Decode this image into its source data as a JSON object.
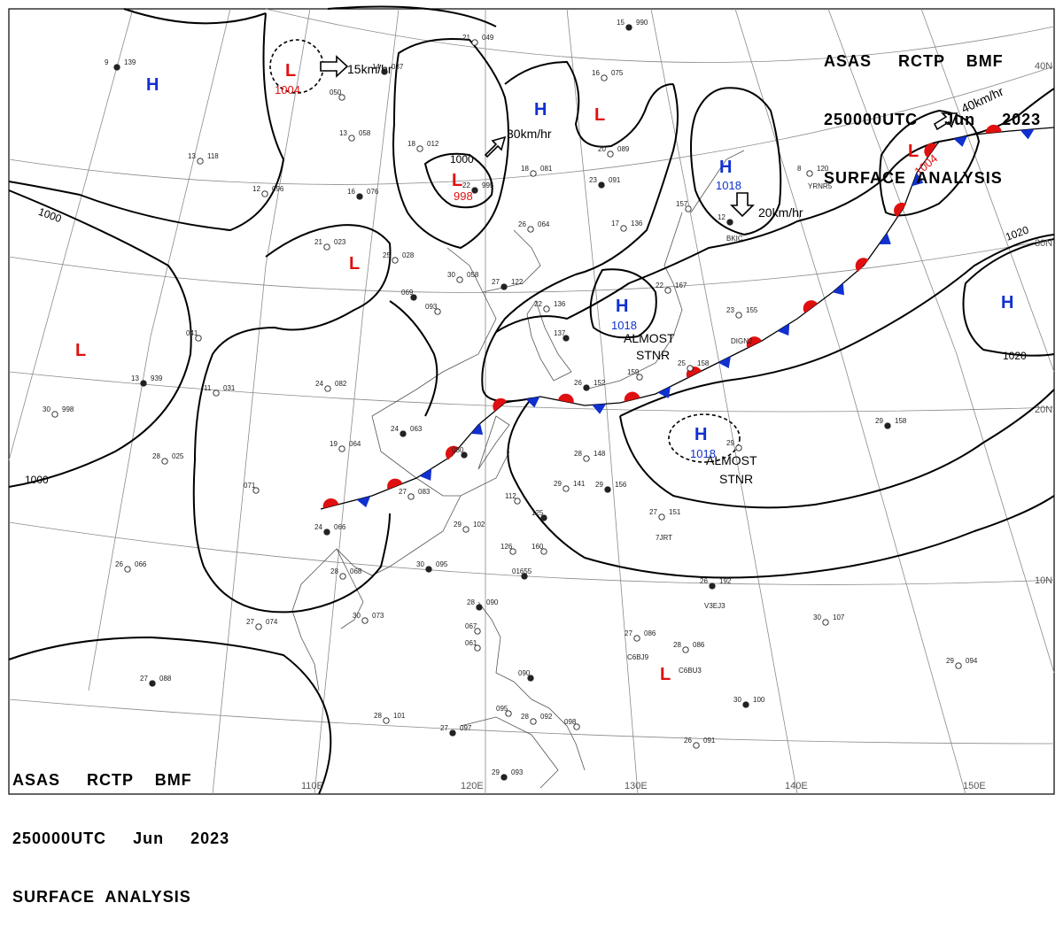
{
  "header_top": {
    "line1": "ASAS     RCTP    BMF",
    "line2": "250000UTC     Jun     2023",
    "line3": "SURFACE  ANALYSIS"
  },
  "header_bottom": {
    "line1": "ASAS     RCTP    BMF",
    "line2": "250000UTC     Jun     2023",
    "line3": "SURFACE  ANALYSIS"
  },
  "longitude_labels": [
    "110E",
    "120E",
    "130E",
    "140E",
    "150E"
  ],
  "latitude_labels": [
    "40N",
    "30N",
    "20N",
    "10N"
  ],
  "pressure_centers": [
    {
      "type": "H",
      "value": ""
    },
    {
      "type": "L",
      "value": "1004"
    },
    {
      "type": "L",
      "value": "998"
    },
    {
      "type": "H",
      "value": ""
    },
    {
      "type": "L",
      "value": ""
    },
    {
      "type": "H",
      "value": "1018"
    },
    {
      "type": "L",
      "value": "1004"
    },
    {
      "type": "L",
      "value": ""
    },
    {
      "type": "L",
      "value": ""
    },
    {
      "type": "H",
      "value": "1018"
    },
    {
      "type": "H",
      "value": "1018"
    },
    {
      "type": "H",
      "value": ""
    },
    {
      "type": "L",
      "value": ""
    }
  ],
  "isobar_labels": [
    "1000",
    "1000",
    "1000",
    "1020",
    "1020"
  ],
  "movement_labels": [
    "15km/hr",
    "30km/hr",
    "20km/hr",
    "40km/hr"
  ],
  "notes": [
    [
      "ALMOST",
      "STNR"
    ],
    [
      "ALMOST",
      "STNR"
    ]
  ],
  "station_plots": [
    {
      "t": "9",
      "p": "139"
    },
    {
      "t": "12",
      "p": "096"
    },
    {
      "t": "13",
      "p": "118"
    },
    {
      "t": "14",
      "p": "037"
    },
    {
      "t": "050",
      "p": ""
    },
    {
      "t": "13",
      "p": "058"
    },
    {
      "t": "16",
      "p": "076"
    },
    {
      "t": "18",
      "p": "012"
    },
    {
      "t": "21",
      "p": "049"
    },
    {
      "t": "22",
      "p": "995"
    },
    {
      "t": "21",
      "p": "023"
    },
    {
      "t": "25",
      "p": "028"
    },
    {
      "t": "069",
      "p": ""
    },
    {
      "t": "093",
      "p": ""
    },
    {
      "t": "30",
      "p": "058"
    },
    {
      "t": "27",
      "p": "122"
    },
    {
      "t": "26",
      "p": "064"
    },
    {
      "t": "18",
      "p": "081"
    },
    {
      "t": "23",
      "p": "091"
    },
    {
      "t": "20",
      "p": "089"
    },
    {
      "t": "16",
      "p": "075"
    },
    {
      "t": "15",
      "p": "990"
    },
    {
      "t": "17",
      "p": "136"
    },
    {
      "t": "157",
      "p": ""
    },
    {
      "t": "12",
      "p": ""
    },
    {
      "t": "8",
      "p": "120"
    },
    {
      "t": "22",
      "p": "136"
    },
    {
      "t": "137",
      "p": ""
    },
    {
      "t": "22",
      "p": "167"
    },
    {
      "t": "23",
      "p": "155"
    },
    {
      "t": "26",
      "p": "152"
    },
    {
      "t": "159",
      "p": ""
    },
    {
      "t": "25",
      "p": "158"
    },
    {
      "t": "29",
      "p": "158"
    },
    {
      "t": "24",
      "p": "082"
    },
    {
      "t": "11",
      "p": "031"
    },
    {
      "t": "13",
      "p": "939"
    },
    {
      "t": "30",
      "p": "998"
    },
    {
      "t": "041",
      "p": ""
    },
    {
      "t": "24",
      "p": "063"
    },
    {
      "t": "19",
      "p": "064"
    },
    {
      "t": "28",
      "p": "025"
    },
    {
      "t": "080",
      "p": ""
    },
    {
      "t": "27",
      "p": "083"
    },
    {
      "t": "071",
      "p": ""
    },
    {
      "t": "24",
      "p": "066"
    },
    {
      "t": "26",
      "p": "066"
    },
    {
      "t": "28",
      "p": "068"
    },
    {
      "t": "30",
      "p": "095"
    },
    {
      "t": "30",
      "p": "073"
    },
    {
      "t": "27",
      "p": "074"
    },
    {
      "t": "27",
      "p": "088"
    },
    {
      "t": "29",
      "p": "102"
    },
    {
      "t": "112",
      "p": ""
    },
    {
      "t": "125",
      "p": ""
    },
    {
      "t": "126",
      "p": ""
    },
    {
      "t": "160",
      "p": ""
    },
    {
      "t": "01655",
      "p": ""
    },
    {
      "t": "28",
      "p": "148"
    },
    {
      "t": "29",
      "p": "141"
    },
    {
      "t": "29",
      "p": "156"
    },
    {
      "t": "27",
      "p": "151"
    },
    {
      "t": "29",
      "p": ""
    },
    {
      "t": "28",
      "p": "090"
    },
    {
      "t": "067",
      "p": ""
    },
    {
      "t": "061",
      "p": ""
    },
    {
      "t": "090",
      "p": ""
    },
    {
      "t": "095",
      "p": ""
    },
    {
      "t": "28",
      "p": "101"
    },
    {
      "t": "27",
      "p": "097"
    },
    {
      "t": "28",
      "p": "092"
    },
    {
      "t": "098",
      "p": ""
    },
    {
      "t": "29",
      "p": "093"
    },
    {
      "t": "27",
      "p": "086"
    },
    {
      "t": "28",
      "p": "086"
    },
    {
      "t": "26",
      "p": "192"
    },
    {
      "t": "30",
      "p": "107"
    },
    {
      "t": "29",
      "p": "094"
    },
    {
      "t": "30",
      "p": "100"
    },
    {
      "t": "26",
      "p": "091"
    }
  ],
  "station_ids": [
    "BKIC",
    "YRNR5",
    "DIGN2",
    "7JRT",
    "V3EJ3",
    "C6BJ9",
    "C6BU3"
  ],
  "colors": {
    "high": "#1030d0",
    "low": "#e01010",
    "warm_front": "#e01010",
    "cold_front": "#1030d0",
    "isobar": "#000000",
    "grid": "#888888"
  }
}
